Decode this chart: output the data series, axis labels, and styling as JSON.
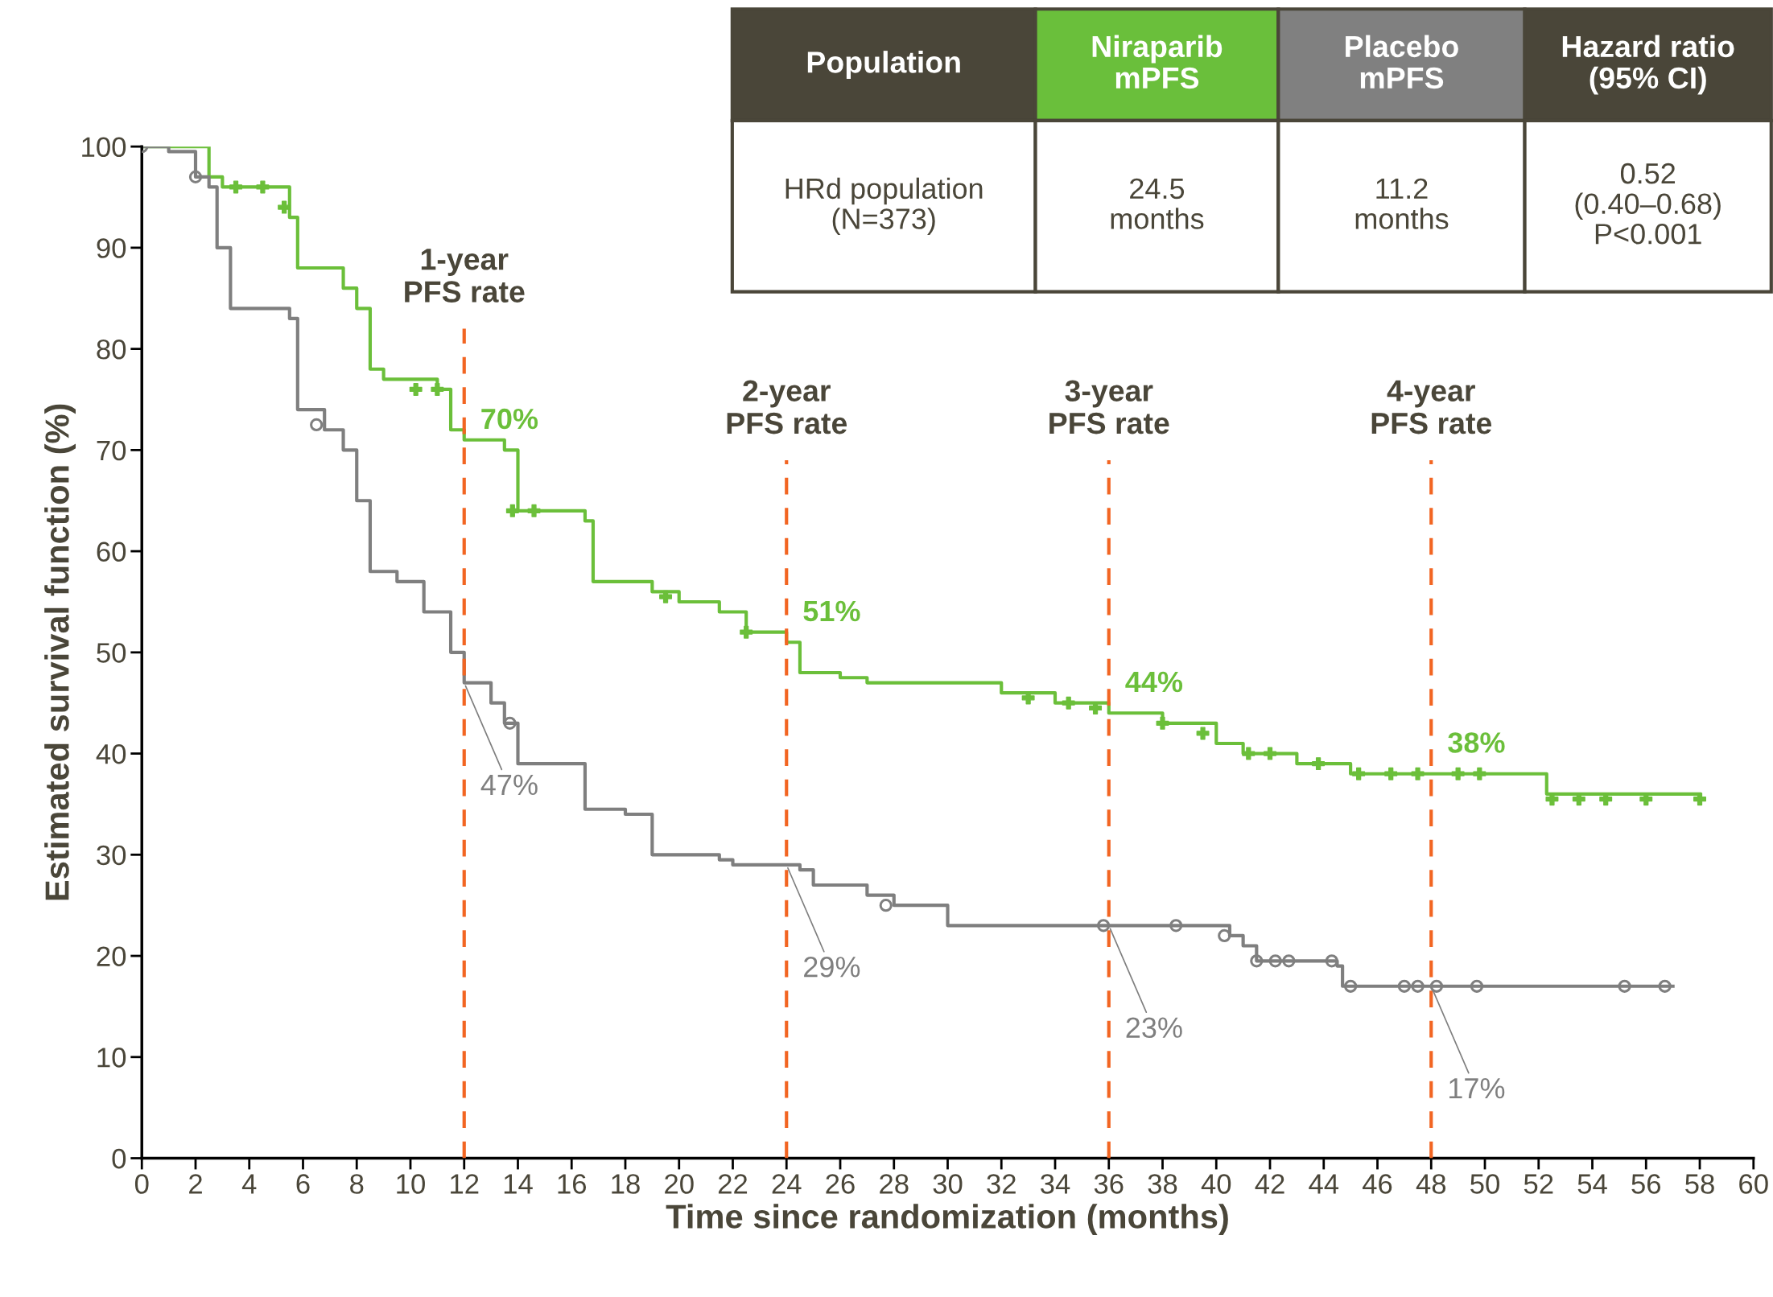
{
  "chart_data": {
    "type": "step",
    "xlabel": "Time since randomization (months)",
    "ylabel": "Estimated survival function (%)",
    "xlim": [
      0,
      60
    ],
    "xticks": [
      0,
      2,
      4,
      6,
      8,
      10,
      12,
      14,
      16,
      18,
      20,
      22,
      24,
      26,
      28,
      30,
      32,
      34,
      36,
      38,
      40,
      42,
      44,
      46,
      48,
      50,
      52,
      54,
      56,
      58,
      60
    ],
    "ylim": [
      0,
      100
    ],
    "yticks": [
      0,
      10,
      20,
      30,
      40,
      50,
      60,
      70,
      80,
      90,
      100
    ],
    "grid": false,
    "legend": false,
    "marker": "none",
    "line_style": "solid",
    "series": [
      {
        "color": "#6bbf3a",
        "x": [
          0,
          2.0,
          2.5,
          3,
          5.2,
          5.5,
          5.8,
          6.5,
          7.5,
          8,
          8.5,
          9,
          11,
          11.5,
          12,
          13.5,
          14,
          16.5,
          16.8,
          19,
          20,
          21.5,
          22.5,
          24,
          24.5,
          26,
          27,
          31,
          32,
          34,
          36,
          38,
          40,
          41,
          43,
          45,
          52,
          52.3,
          58
        ],
        "values": [
          100,
          100,
          97,
          96,
          96,
          93,
          88,
          88,
          86,
          84,
          78,
          77,
          76,
          72,
          71,
          70,
          64,
          63,
          57,
          56,
          55,
          54,
          52,
          51,
          48,
          47.5,
          47,
          47,
          46,
          45,
          44,
          43,
          41,
          40,
          39,
          38,
          38,
          36,
          36
        ]
      },
      {
        "color": "#7f7f7f",
        "x": [
          0,
          1,
          2,
          2.5,
          2.8,
          3.3,
          5.5,
          5.8,
          6.8,
          7.5,
          8,
          8.5,
          9.5,
          10.5,
          11.5,
          12,
          13,
          13.5,
          14,
          16,
          16.5,
          18,
          19,
          20,
          21.5,
          22,
          24.5,
          25,
          27,
          28,
          30,
          36,
          40,
          40.5,
          41,
          41.5,
          44.5,
          44.7,
          57
        ],
        "values": [
          100,
          99.5,
          97,
          96,
          90,
          84,
          83,
          74,
          72,
          70,
          65,
          58,
          57,
          54,
          50,
          47,
          45,
          43,
          39,
          39,
          34.5,
          34,
          30,
          30,
          29.5,
          29,
          28.5,
          27,
          26,
          25,
          23,
          23,
          23,
          22,
          21,
          19.5,
          19,
          17,
          17
        ]
      },
      {
        "type": "scatter",
        "marker": "cross",
        "color": "#6bbf3a",
        "x": [
          3.5,
          4.5,
          5.3,
          10.2,
          11,
          13.8,
          14.6,
          19.5,
          22.5,
          33,
          34.5,
          35.5,
          38,
          39.5,
          41.2,
          42,
          43.8,
          45.3,
          46.5,
          47.5,
          49,
          49.8,
          52.5,
          53.5,
          54.5,
          56,
          58
        ],
        "values": [
          96,
          96,
          94,
          76,
          76,
          64,
          64,
          55.5,
          52,
          45.5,
          45,
          44.5,
          43,
          42,
          40,
          40,
          39,
          38,
          38,
          38,
          38,
          38,
          35.5,
          35.5,
          35.5,
          35.5,
          35.5
        ]
      },
      {
        "type": "scatter",
        "marker": "circle",
        "color": "#7f7f7f",
        "x": [
          0,
          2,
          6.5,
          13.7,
          27.7,
          35.8,
          38.5,
          40.3,
          41.5,
          42.2,
          42.7,
          44.3,
          45,
          47,
          47.5,
          48.2,
          49.7,
          55.2,
          56.7
        ],
        "values": [
          100,
          97,
          72.5,
          43,
          25,
          23,
          23,
          22,
          19.5,
          19.5,
          19.5,
          19.5,
          17,
          17,
          17,
          17,
          17,
          17,
          17
        ]
      }
    ],
    "ref_lines": [
      {
        "axis": "x",
        "value": 12,
        "label": "1-year\nPFS rate",
        "color": "#f26522",
        "line_style": "dashed"
      },
      {
        "axis": "x",
        "value": 24,
        "label": "2-year\nPFS rate",
        "color": "#f26522",
        "line_style": "dashed"
      },
      {
        "axis": "x",
        "value": 36,
        "label": "3-year\nPFS rate",
        "color": "#f26522",
        "line_style": "dashed"
      },
      {
        "axis": "x",
        "value": 48,
        "label": "4-year\nPFS rate",
        "color": "#f26522",
        "line_style": "dashed"
      }
    ],
    "annotations": [
      "Population",
      "Niraparib\nmPFS",
      "Placebo\nmPFS",
      "Hazard ratio\n(95% CI)",
      "HRd population\n(N=373)",
      "24.5\nmonths",
      "11.2\nmonths",
      "0.52\n(0.40–0.68)\nP<0.001",
      {
        "text": "70%",
        "x": 12,
        "y": 70
      },
      {
        "text": "51%",
        "x": 24,
        "y": 51
      },
      {
        "text": "44%",
        "x": 36,
        "y": 44
      },
      {
        "text": "38%",
        "x": 48,
        "y": 38
      },
      {
        "text": "47%",
        "x": 12,
        "y": 47
      },
      {
        "text": "29%",
        "x": 24,
        "y": 29
      },
      {
        "text": "23%",
        "x": 36,
        "y": 23
      },
      {
        "text": "17%",
        "x": 48,
        "y": 17
      }
    ]
  }
}
